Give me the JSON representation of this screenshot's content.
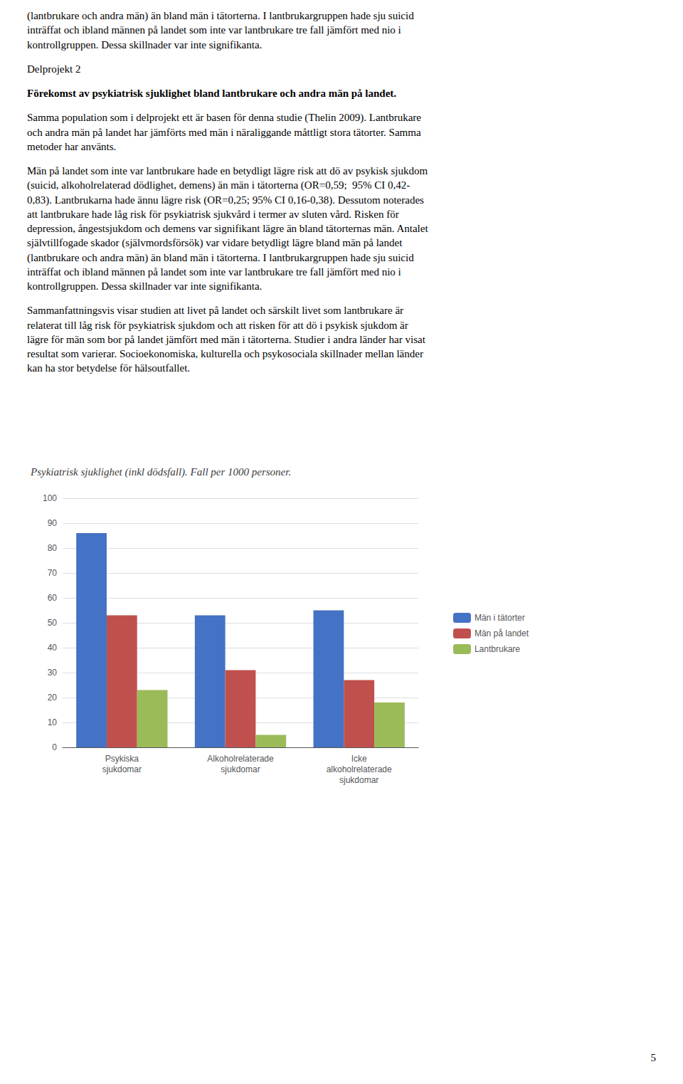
{
  "chart_data": {
    "type": "bar",
    "title": "Psykiatrisk sjuklighet (inkl dödsfall). Fall per 1000 personer.",
    "annotations": [
      "(lantbrukare och andra män) än bland män i tätorterna. I lantbrukargruppen hade sju suicid\ninträffat och ibland männen på landet som inte var lantbrukare tre fall jämfört med nio i\nkontrollgruppen. Dessa skillnader var inte signifikanta.",
      "Delprojekt 2",
      "Förekomst av psykiatrisk sjuklighet bland lantbrukare och andra män på landet.",
      "Samma population som i delprojekt ett är basen för denna studie (Thelin 2009). Lantbrukare\noch andra män på landet har jämförts med män i näraliggande måttligt stora tätorter. Samma\nmetoder har använts.",
      "Män på landet som inte var lantbrukare hade en betydligt lägre risk att dö av psykisk sjukdom\n(suicid, alkoholrelaterad dödlighet, demens) än män i tätorterna (OR=0,59;  95% CI 0,42-\n0,83). Lantbrukarna hade ännu lägre risk (OR=0,25; 95% CI 0,16-0,38). Dessutom noterades\natt lantbrukare hade låg risk för psykiatrisk sjukvård i termer av sluten vård. Risken för\ndepression, ångestsjukdom och demens var signifikant lägre än bland tätorternas män. Antalet\nsjälvtillfogade skador (självmordsförsök) var vidare betydligt lägre bland män på landet\n(lantbrukare och andra män) än bland män i tätorterna. I lantbrukargruppen hade sju suicid\ninträffat och ibland männen på landet som inte var lantbrukare tre fall jämfört med nio i\nkontrollgruppen. Dessa skillnader var inte signifikanta.",
      "Sammanfattningsvis visar studien att livet på landet och särskilt livet som lantbrukare är\nrelaterat till låg risk för psykiatrisk sjukdom och att risken för att dö i psykisk sjukdom är\nlägre för män som bor på landet jämfört med män i tätorterna. Studier i andra länder har visat\nresultat som varierar. Socioekonomiska, kulturella och psykosociala skillnader mellan länder\nkan ha stor betydelse för hälsoutfallet.",
      "5"
    ],
    "categories": [
      "Psykiska\nsjukdomar",
      "Alkoholrelaterade\nsjukdomar",
      "Icke\nalkoholrelaterade\nsjukdomar"
    ],
    "series": [
      {
        "name": "Män i tätorter",
        "values": [
          86,
          53,
          55
        ],
        "color": "#4472C4"
      },
      {
        "name": "Män på landet",
        "values": [
          53,
          31,
          27
        ],
        "color": "#C0504D"
      },
      {
        "name": "Lantbrukare",
        "values": [
          23,
          5,
          18
        ],
        "color": "#9BBB59"
      }
    ],
    "ylim": [
      0,
      100
    ],
    "yticks": [
      0,
      10,
      20,
      30,
      40,
      50,
      60,
      70,
      80,
      90,
      100
    ],
    "grid": true,
    "legend": "right"
  }
}
